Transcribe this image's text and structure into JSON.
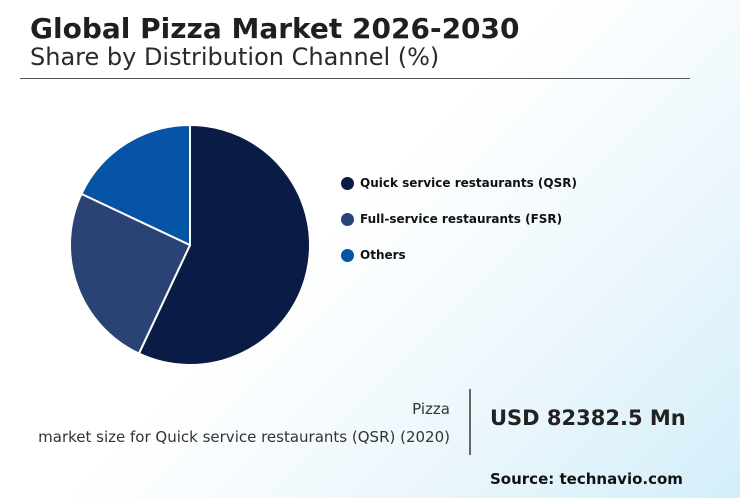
{
  "header": {
    "title": "Global Pizza Market 2026-2030",
    "subtitle": "Share by Distribution Channel (%)"
  },
  "chart_data": {
    "type": "pie",
    "categories": [
      "Quick service restaurants (QSR)",
      "Full-service restaurants (FSR)",
      "Others"
    ],
    "values": [
      57,
      25,
      18
    ],
    "colors": [
      "#0a1c45",
      "#2b4374",
      "#0654a5"
    ],
    "slice_edge_color": "#ffffff",
    "legend": "right"
  },
  "stat": {
    "label_line1": "Pizza",
    "label_line2": "market size for Quick service restaurants (QSR) (2020)",
    "value": "USD 82382.5 Mn"
  },
  "footer": {
    "source": "Source: technavio.com"
  }
}
